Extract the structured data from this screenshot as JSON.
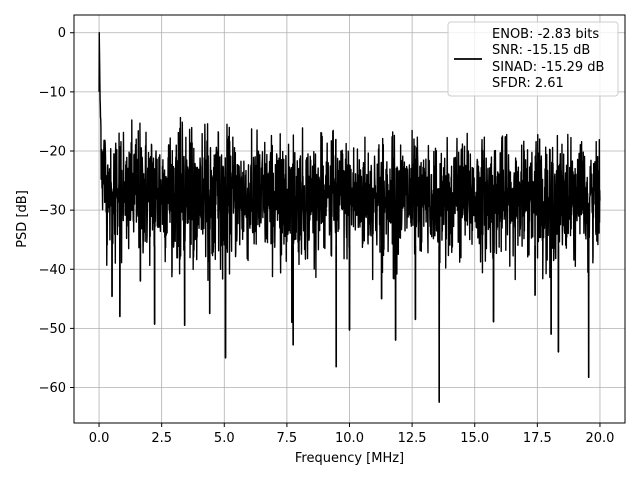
{
  "chart_data": {
    "type": "line",
    "title": "",
    "xlabel": "Frequency [MHz]",
    "ylabel": "PSD [dB]",
    "xlim": [
      -1.0,
      21.0
    ],
    "ylim": [
      -66.0,
      3.0
    ],
    "xticks": [
      0.0,
      2.5,
      5.0,
      7.5,
      10.0,
      12.5,
      15.0,
      17.5,
      20.0
    ],
    "xtick_labels": [
      "0.0",
      "2.5",
      "5.0",
      "7.5",
      "10.0",
      "12.5",
      "15.0",
      "17.5",
      "20.0"
    ],
    "yticks": [
      0,
      -10,
      -20,
      -30,
      -40,
      -50,
      -60
    ],
    "ytick_labels": [
      "0",
      "−10",
      "−20",
      "−30",
      "−40",
      "−50",
      "−60"
    ],
    "grid": true,
    "legend_position": "top-right",
    "legend_lines": [
      "ENOB: -2.83 bits",
      "SNR: -15.15 dB",
      "SINAD: -15.29 dB",
      "SFDR: 2.61"
    ],
    "line_color": "#000000",
    "series": [
      {
        "color": "#000000",
        "x": [
          0.0,
          0.01,
          0.03,
          0.06,
          0.1,
          0.15,
          0.2,
          0.3,
          0.5,
          1,
          2,
          3,
          4,
          5,
          6,
          7,
          8,
          9,
          10,
          11,
          12,
          13,
          14,
          15,
          16,
          17,
          18,
          19,
          20
        ],
        "y": [
          -10,
          0,
          -8,
          -15,
          -20,
          -25,
          -22,
          -28,
          -26,
          -27,
          -27,
          -27,
          -27.5,
          -27.5,
          -28,
          -28,
          -28,
          -28,
          -28,
          -28,
          -28,
          -28,
          -28,
          -28,
          -28,
          -28,
          -28,
          -28,
          -28
        ],
        "y_upper": [
          -10,
          0,
          -7,
          -10,
          -11,
          -13,
          -12,
          -13,
          -13,
          -13,
          -14,
          -14,
          -15,
          -15,
          -16,
          -16,
          -16,
          -16.5,
          -16.5,
          -17,
          -16.5,
          -16.5,
          -17,
          -17,
          -17,
          -17,
          -17,
          -17,
          -17
        ],
        "y_lower": [
          -10,
          0,
          -10,
          -25,
          -30,
          -35,
          -35,
          -40,
          -40,
          -41,
          -42,
          -42,
          -42,
          -42,
          -42,
          -42,
          -42,
          -42,
          -42,
          -42,
          -42,
          -42,
          -42,
          -42,
          -42,
          -42,
          -42,
          -42,
          -42
        ]
      }
    ],
    "notable_dips": [
      {
        "x": 0.52,
        "y": -44.6
      },
      {
        "x": 0.83,
        "y": -48.0
      },
      {
        "x": 1.65,
        "y": -42.0
      },
      {
        "x": 2.22,
        "y": -49.3
      },
      {
        "x": 3.42,
        "y": -49.5
      },
      {
        "x": 5.05,
        "y": -55.0
      },
      {
        "x": 4.42,
        "y": -47.5
      },
      {
        "x": 7.75,
        "y": -52.8
      },
      {
        "x": 7.7,
        "y": -49.0
      },
      {
        "x": 9.47,
        "y": -56.5
      },
      {
        "x": 10.0,
        "y": -50.3
      },
      {
        "x": 11.28,
        "y": -45.0
      },
      {
        "x": 11.84,
        "y": -52.0
      },
      {
        "x": 12.63,
        "y": -48.5
      },
      {
        "x": 13.58,
        "y": -62.5
      },
      {
        "x": 15.75,
        "y": -48.9
      },
      {
        "x": 17.41,
        "y": -44.4
      },
      {
        "x": 18.05,
        "y": -51.0
      },
      {
        "x": 18.34,
        "y": -54.0
      },
      {
        "x": 19.55,
        "y": -58.3
      }
    ]
  }
}
